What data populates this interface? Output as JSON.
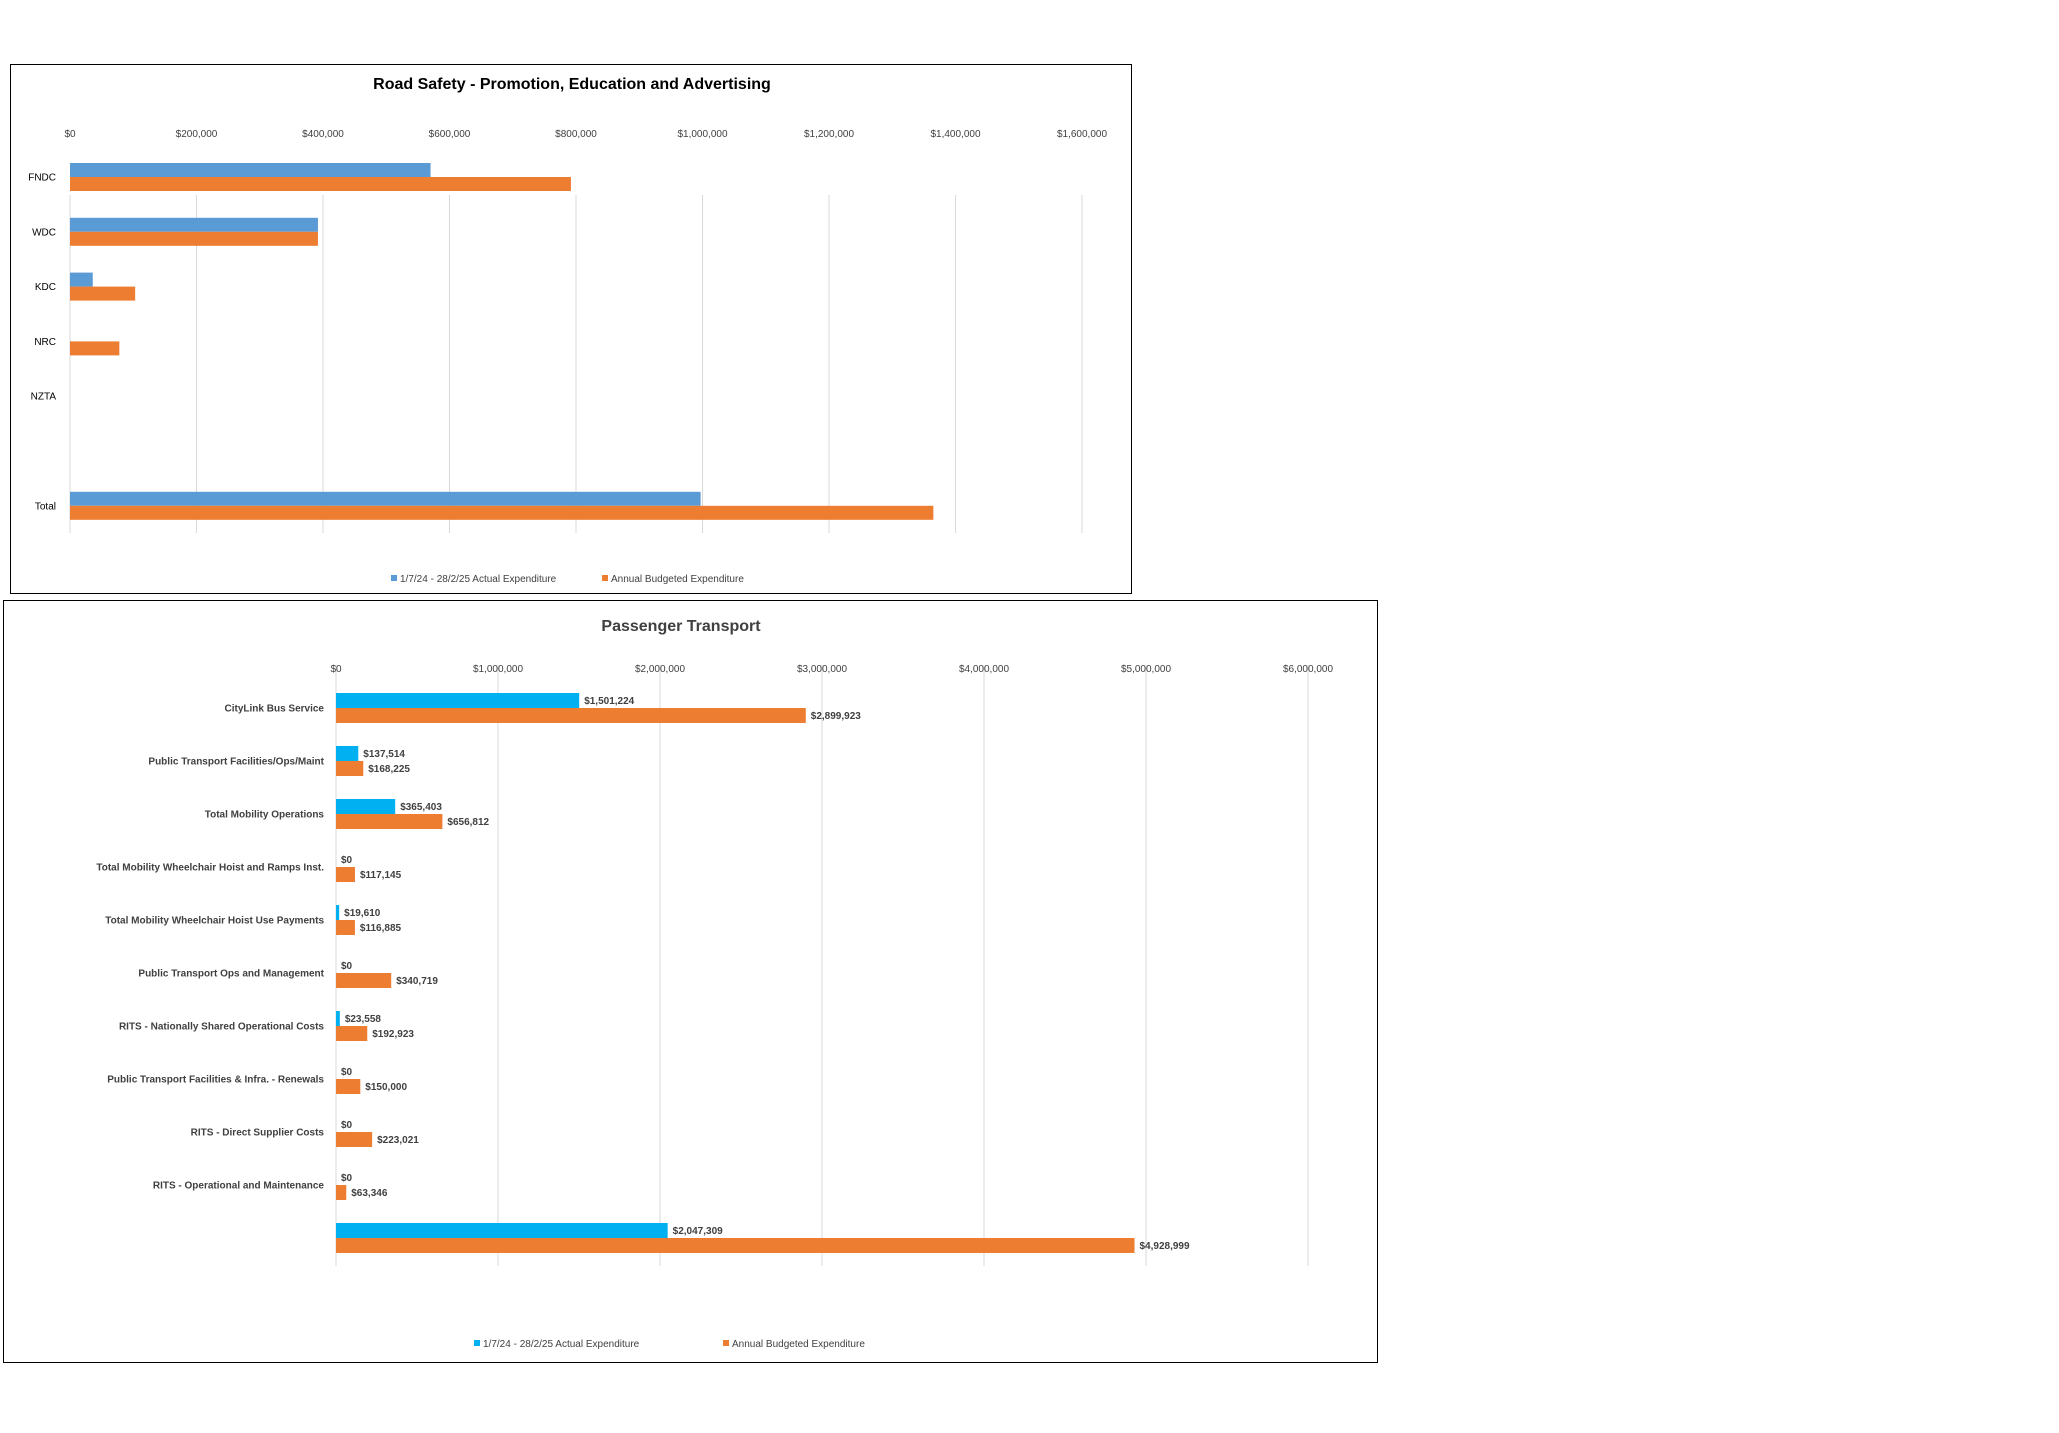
{
  "chart_data": [
    {
      "type": "bar",
      "orientation": "horizontal",
      "title": "Road Safety - Promotion, Education and Advertising",
      "categories": [
        "FNDC",
        "WDC",
        "KDC",
        "NRC",
        "NZTA",
        "",
        "Total"
      ],
      "series": [
        {
          "name": "1/7/24 - 28/2/25 Actual Expenditure",
          "color": "#5b9bd5",
          "values": [
            570000,
            392000,
            36000,
            0,
            0,
            null,
            997000
          ]
        },
        {
          "name": "Annual Budgeted Expenditure",
          "color": "#ed7d31",
          "values": [
            792000,
            392000,
            103000,
            78000,
            0,
            null,
            1365000
          ]
        }
      ],
      "xlim": [
        0,
        1600000
      ],
      "tick_labels": [
        "$0",
        "$200,000",
        "$400,000",
        "$600,000",
        "$800,000",
        "$1,000,000",
        "$1,200,000",
        "$1,400,000",
        "$1,600,000"
      ],
      "axis_position": "top",
      "legend": "bottom",
      "grid": true
    },
    {
      "type": "bar",
      "orientation": "horizontal",
      "title": "Passenger Transport",
      "categories": [
        "CityLink Bus Service",
        "Public Transport Facilities/Ops/Maint",
        "Total Mobility Operations",
        "Total Mobility Wheelchair Hoist and Ramps Inst.",
        "Total Mobility Wheelchair Hoist Use Payments",
        "Public Transport Ops and Management",
        "RITS - Nationally Shared Operational Costs",
        "Public Transport Facilities & Infra. - Renewals",
        "RITS - Direct Supplier Costs",
        "RITS - Operational and Maintenance",
        ""
      ],
      "series": [
        {
          "name": "1/7/24 - 28/2/25 Actual Expenditure",
          "color": "#00b0f0",
          "values": [
            1501224,
            137514,
            365403,
            0,
            19610,
            0,
            23558,
            0,
            0,
            0,
            2047309
          ],
          "labels": [
            "$1,501,224",
            "$137,514",
            "$365,403",
            "$0",
            "$19,610",
            "$0",
            "$23,558",
            "$0",
            "$0",
            "$0",
            "$2,047,309"
          ]
        },
        {
          "name": "Annual Budgeted Expenditure",
          "color": "#ed7d31",
          "values": [
            2899923,
            168225,
            656812,
            117145,
            116885,
            340719,
            192923,
            150000,
            223021,
            63346,
            4928999
          ],
          "labels": [
            "$2,899,923",
            "$168,225",
            "$656,812",
            "$117,145",
            "$116,885",
            "$340,719",
            "$192,923",
            "$150,000",
            "$223,021",
            "$63,346",
            "$4,928,999"
          ]
        }
      ],
      "xlim": [
        0,
        6000000
      ],
      "tick_labels": [
        "$0",
        "$1,000,000",
        "$2,000,000",
        "$3,000,000",
        "$4,000,000",
        "$5,000,000",
        "$6,000,000"
      ],
      "axis_position": "top",
      "legend": "bottom",
      "grid": true
    }
  ]
}
